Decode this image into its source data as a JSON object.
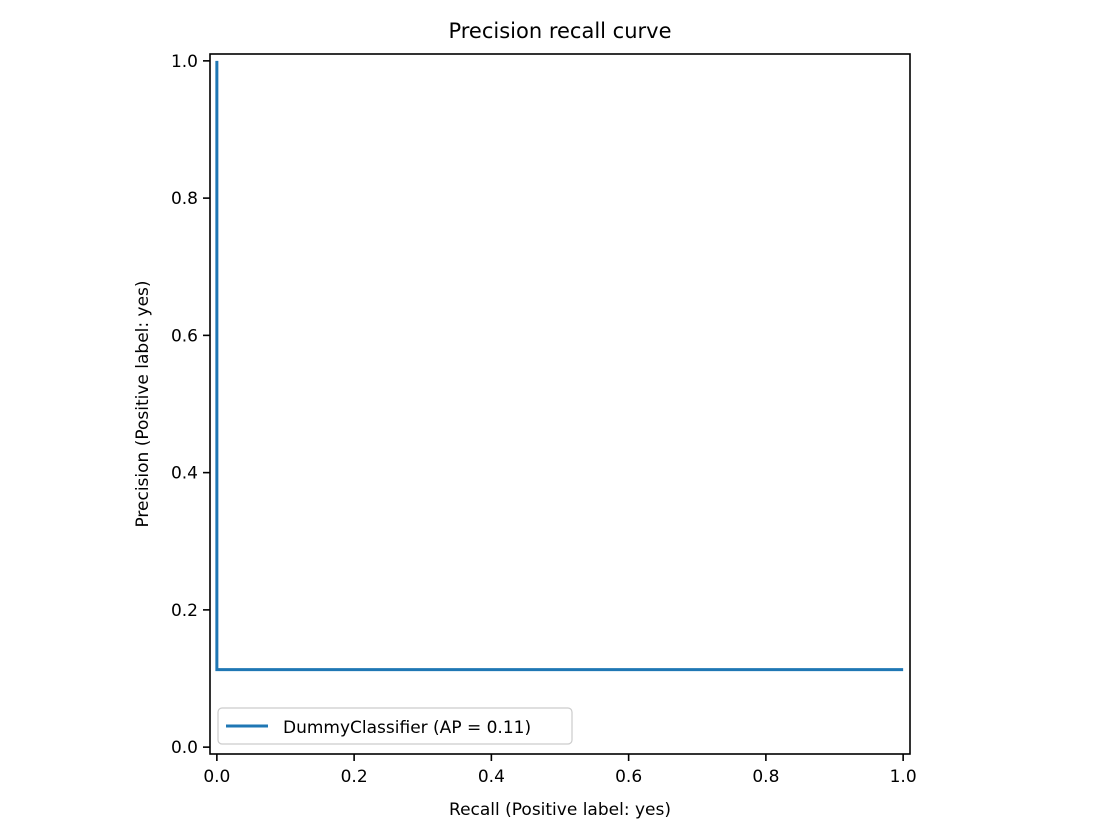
{
  "chart_data": {
    "type": "line",
    "title": "Precision recall curve",
    "xlabel": "Recall (Positive label: yes)",
    "ylabel": "Precision (Positive label: yes)",
    "xlim": [
      -0.01,
      1.01
    ],
    "ylim": [
      -0.01,
      1.01
    ],
    "xticks": [
      0.0,
      0.2,
      0.4,
      0.6,
      0.8,
      1.0
    ],
    "xtick_labels": [
      "0.0",
      "0.2",
      "0.4",
      "0.6",
      "0.8",
      "1.0"
    ],
    "yticks": [
      0.0,
      0.2,
      0.4,
      0.6,
      0.8,
      1.0
    ],
    "ytick_labels": [
      "0.0",
      "0.2",
      "0.4",
      "0.6",
      "0.8",
      "1.0"
    ],
    "grid": false,
    "legend": {
      "placement": "lower-left",
      "entries": [
        "DummyClassifier (AP = 0.11)"
      ]
    },
    "series": [
      {
        "name": "DummyClassifier (AP = 0.11)",
        "color": "#1f77b4",
        "drawstyle": "steps-post",
        "x": [
          0.0,
          0.0,
          1.0
        ],
        "y": [
          1.0,
          0.113,
          0.113
        ]
      }
    ]
  }
}
